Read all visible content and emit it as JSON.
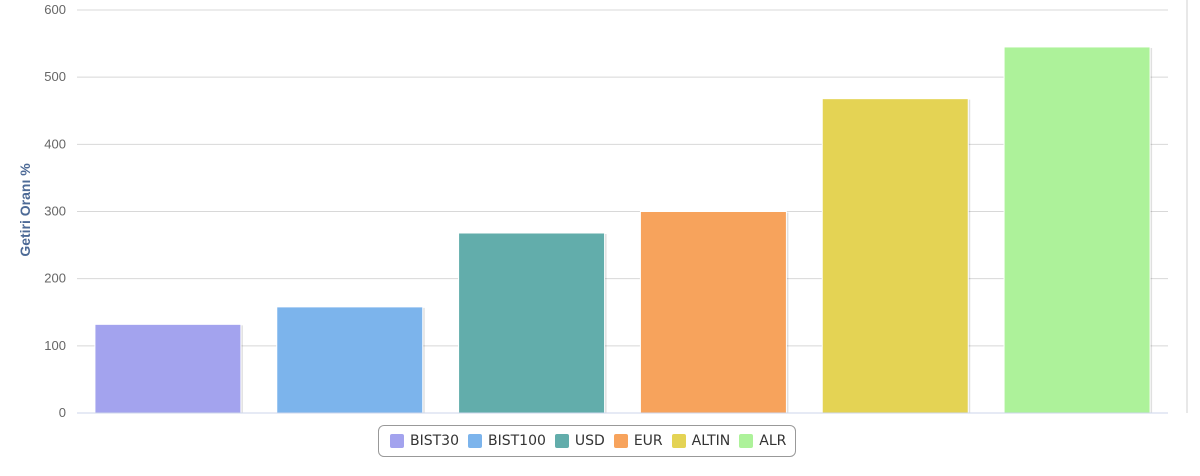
{
  "chart_data": {
    "type": "bar",
    "title": "",
    "xlabel": "",
    "ylabel": "Getiri Oranı %",
    "categories": [
      "BIST30",
      "BIST100",
      "USD",
      "EUR",
      "ALTIN",
      "ALR"
    ],
    "values": [
      132,
      158,
      268,
      300,
      468,
      545
    ],
    "colors": [
      "#a3a3ee",
      "#7cb4ec",
      "#62adab",
      "#f7a35c",
      "#e4d354",
      "#adf29a"
    ],
    "ylim": [
      0,
      600
    ],
    "yticks": [
      0,
      100,
      200,
      300,
      400,
      500,
      600
    ],
    "grid": true,
    "legend_position": "bottom-center"
  }
}
